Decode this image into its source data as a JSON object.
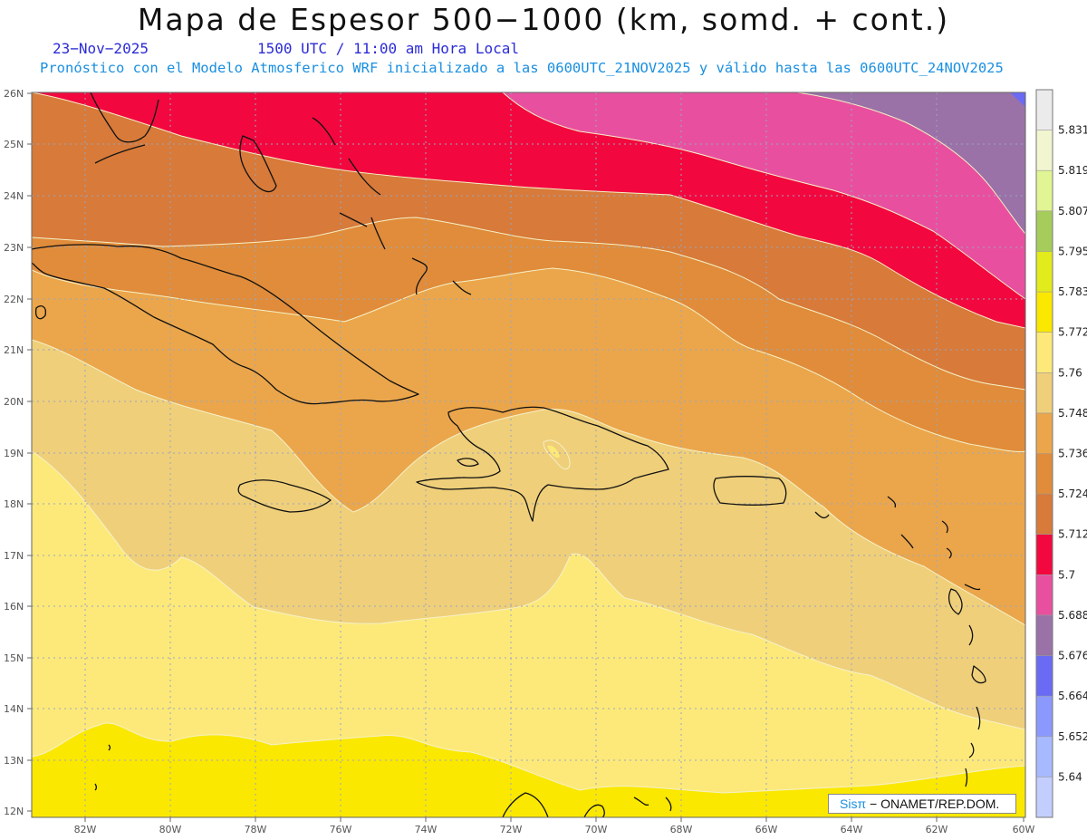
{
  "header": {
    "title": "Mapa de Espesor 500−1000 (km, somd. + cont.)",
    "date": "23−Nov−2025",
    "time": "1500 UTC / 11:00 am Hora Local",
    "model_info": "Pronóstico con el Modelo Atmosferico WRF inicializado a las 0600UTC_21NOV2025 y válido hasta las  0600UTC_24NOV2025"
  },
  "credit": {
    "brand": "Sisπ",
    "text": "− ONAMET/REP.DOM."
  },
  "axes": {
    "lat_labels": [
      "26N",
      "25N",
      "24N",
      "23N",
      "22N",
      "21N",
      "20N",
      "19N",
      "18N",
      "17N",
      "16N",
      "15N",
      "14N",
      "13N",
      "12N"
    ],
    "lon_labels": [
      "82W",
      "80W",
      "78W",
      "76W",
      "74W",
      "72W",
      "70W",
      "68W",
      "66W",
      "64W",
      "62W",
      "60W"
    ]
  },
  "colorbar": {
    "labels": [
      "5.831",
      "5.819",
      "5.807",
      "5.795",
      "5.783",
      "5.772",
      "5.76",
      "5.748",
      "5.736",
      "5.724",
      "5.712",
      "5.7",
      "5.688",
      "5.676",
      "5.664",
      "5.652",
      "5.64"
    ],
    "colors": [
      "#ebebeb",
      "#f2f6d0",
      "#e2f594",
      "#a6cc5c",
      "#e2eb1c",
      "#fbe800",
      "#fde97a",
      "#efcf7a",
      "#eba64b",
      "#e08c3a",
      "#d77a3a",
      "#f2083e",
      "#e8509f",
      "#9a72a7",
      "#6a6af5",
      "#8b99ff",
      "#a8baff",
      "#c3ceff"
    ]
  }
}
